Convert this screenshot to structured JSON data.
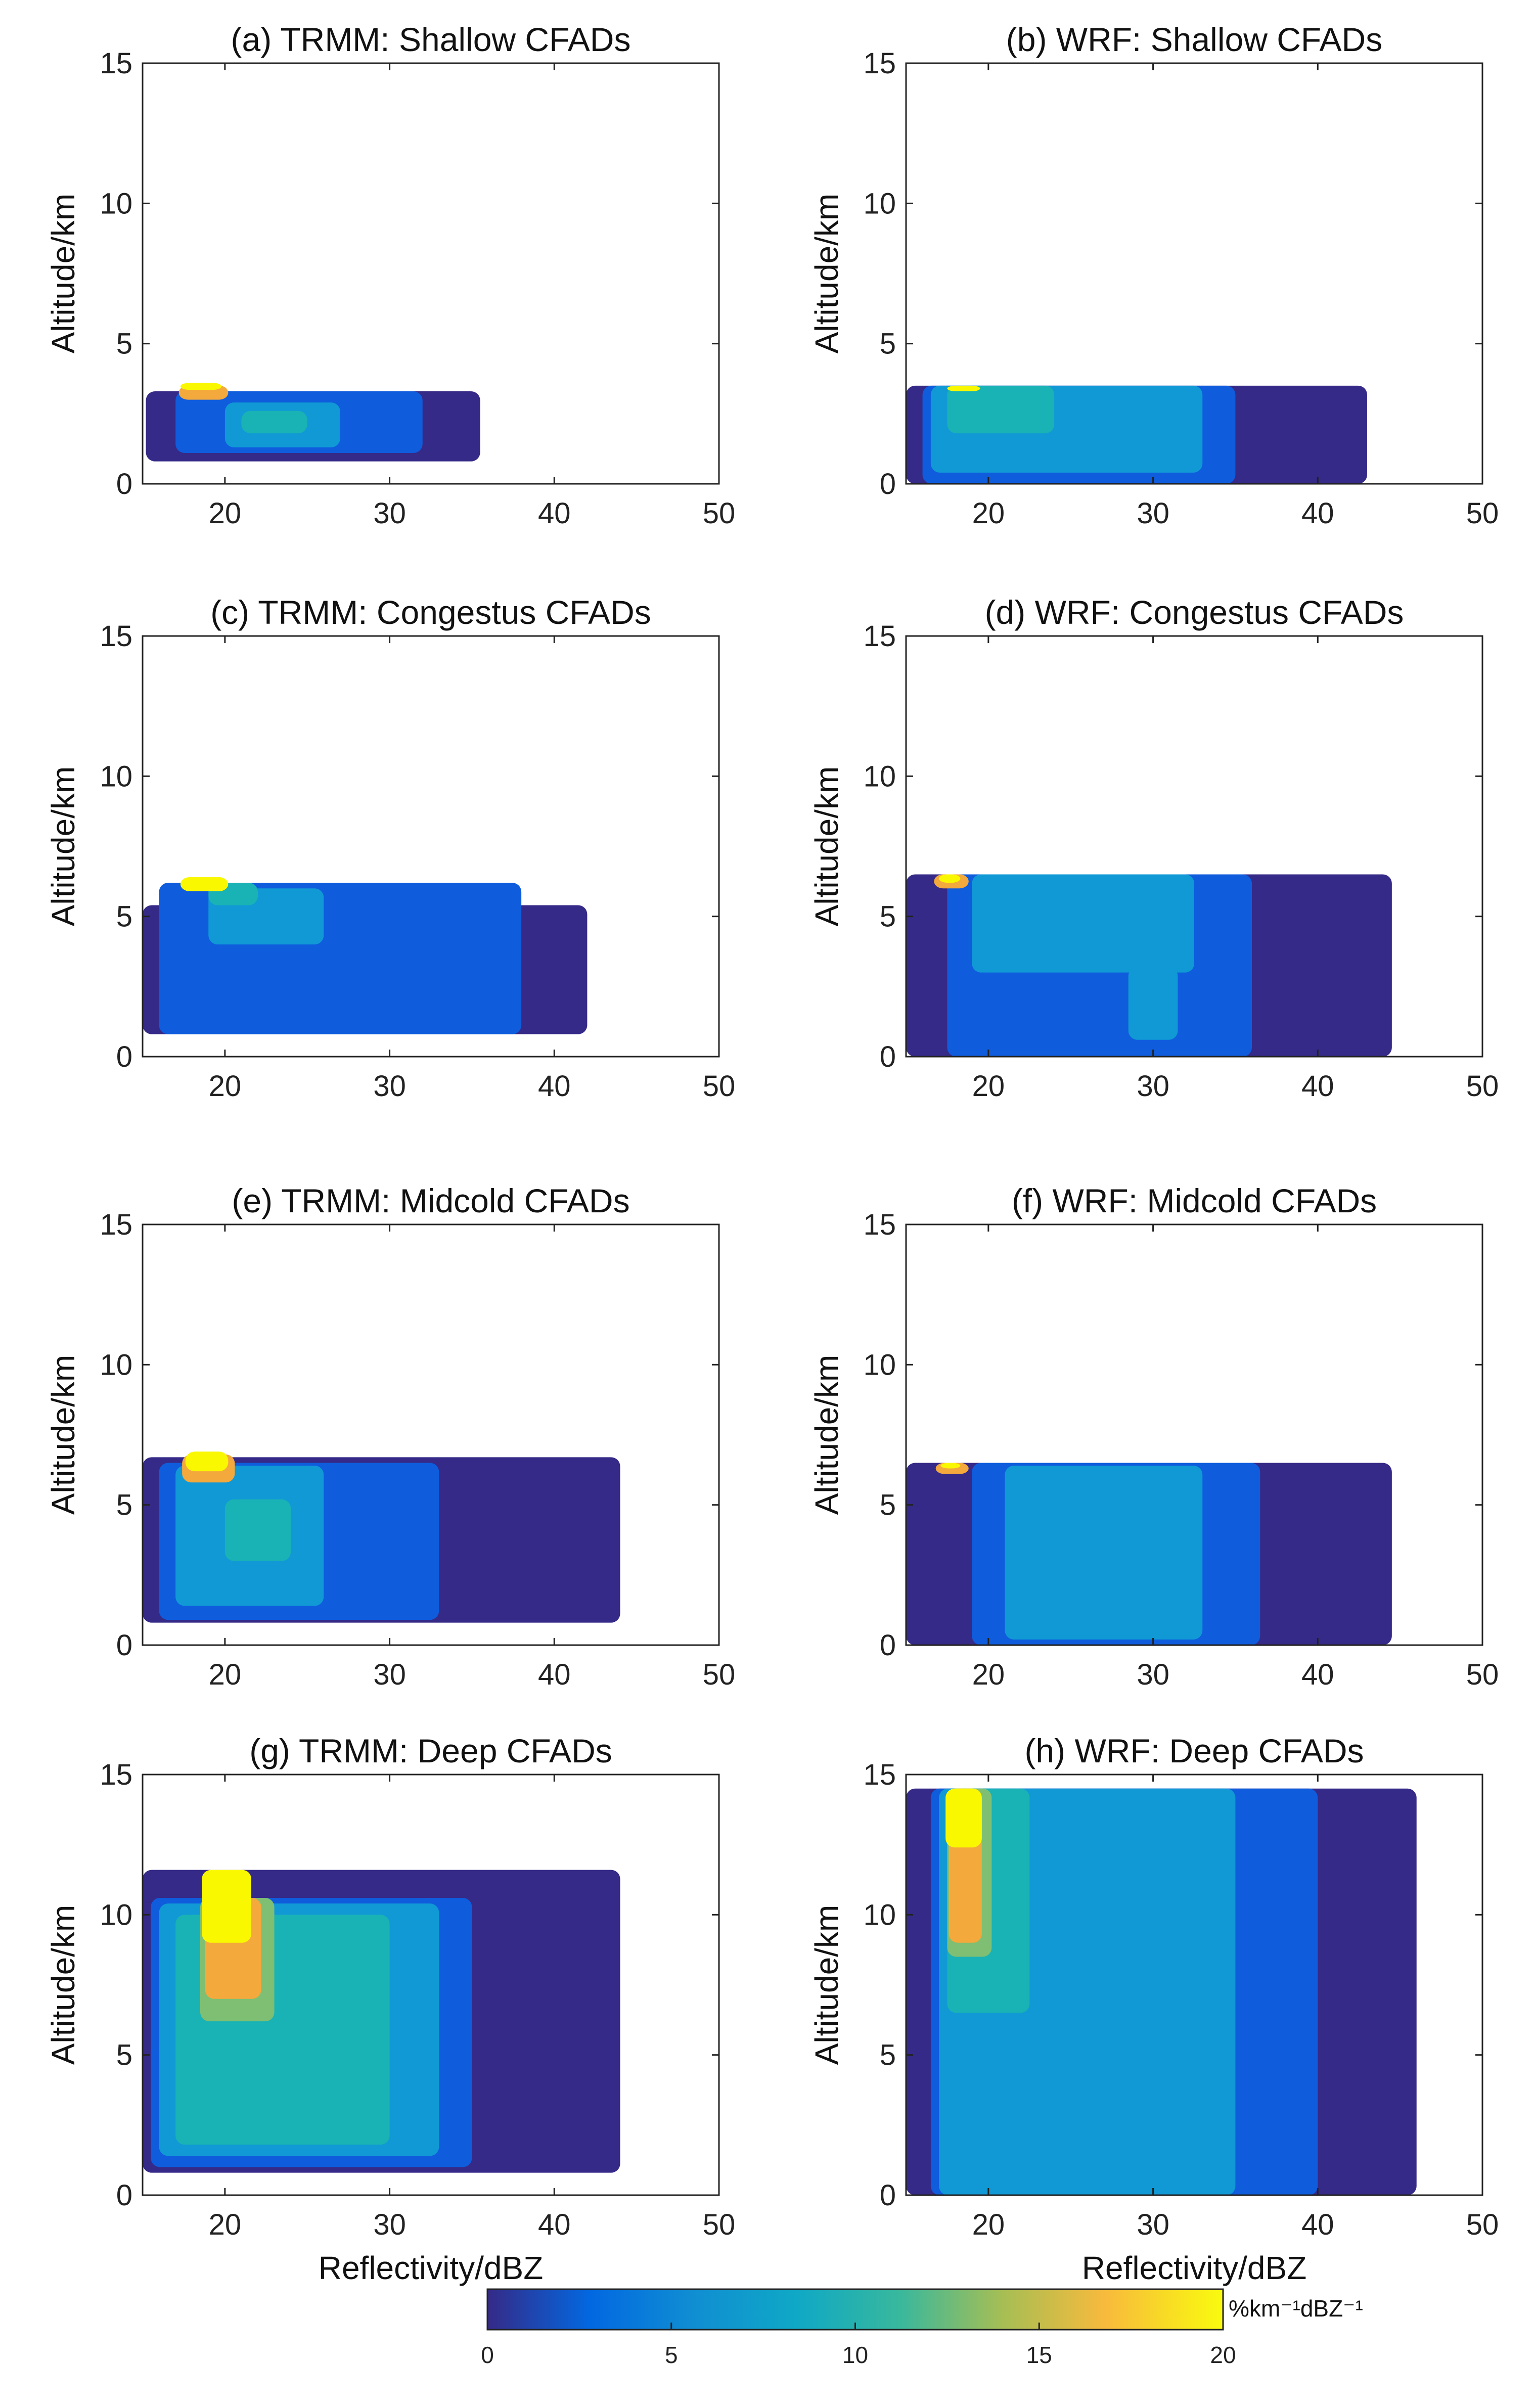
{
  "chart_data": [
    {
      "id": "a",
      "type": "contourf",
      "title": "(a) TRMM: Shallow CFADs",
      "xlim": [
        15,
        50
      ],
      "ylim": [
        0,
        15
      ],
      "xticks": [
        20,
        30,
        40,
        50
      ],
      "yticks": [
        0,
        5,
        10,
        15
      ],
      "ylabel": "Altitude/km",
      "xlabel": "",
      "blobs": [
        {
          "l": 1,
          "x": [
            15.2,
            35.5
          ],
          "y": [
            0.8,
            3.3
          ]
        },
        {
          "l": 2,
          "x": [
            17,
            32
          ],
          "y": [
            1.1,
            3.3
          ]
        },
        {
          "l": 3,
          "x": [
            20,
            27
          ],
          "y": [
            1.3,
            2.9
          ]
        },
        {
          "l": 4,
          "x": [
            21,
            25
          ],
          "y": [
            1.8,
            2.6
          ]
        },
        {
          "l": 6,
          "x": [
            17.2,
            20.2
          ],
          "y": [
            3.0,
            3.5
          ]
        },
        {
          "l": 7,
          "x": [
            17.3,
            19.8
          ],
          "y": [
            3.35,
            3.6
          ]
        }
      ]
    },
    {
      "id": "b",
      "type": "contourf",
      "title": "(b) WRF: Shallow CFADs",
      "xlim": [
        15,
        50
      ],
      "ylim": [
        0,
        15
      ],
      "xticks": [
        20,
        30,
        40,
        50
      ],
      "yticks": [
        0,
        5,
        10,
        15
      ],
      "ylabel": "Altitude/km",
      "xlabel": "",
      "blobs": [
        {
          "l": 1,
          "x": [
            15,
            43
          ],
          "y": [
            0,
            3.5
          ]
        },
        {
          "l": 2,
          "x": [
            16,
            35
          ],
          "y": [
            0,
            3.5
          ]
        },
        {
          "l": 3,
          "x": [
            16.5,
            33
          ],
          "y": [
            0.4,
            3.5
          ]
        },
        {
          "l": 4,
          "x": [
            17.5,
            24
          ],
          "y": [
            1.8,
            3.5
          ]
        },
        {
          "l": 7,
          "x": [
            17.5,
            19.5
          ],
          "y": [
            3.3,
            3.5
          ]
        }
      ]
    },
    {
      "id": "c",
      "type": "contourf",
      "title": "(c) TRMM: Congestus CFADs",
      "xlim": [
        15,
        50
      ],
      "ylim": [
        0,
        15
      ],
      "xticks": [
        20,
        30,
        40,
        50
      ],
      "yticks": [
        0,
        5,
        10,
        15
      ],
      "ylabel": "Altitude/km",
      "xlabel": "",
      "blobs": [
        {
          "l": 1,
          "x": [
            15,
            42
          ],
          "y": [
            0.8,
            5.4
          ]
        },
        {
          "l": 2,
          "x": [
            16,
            38
          ],
          "y": [
            0.8,
            6.2
          ]
        },
        {
          "l": 3,
          "x": [
            19,
            26
          ],
          "y": [
            4.0,
            6.0
          ]
        },
        {
          "l": 4,
          "x": [
            19,
            22
          ],
          "y": [
            5.4,
            6.2
          ]
        },
        {
          "l": 7,
          "x": [
            17.3,
            20.2
          ],
          "y": [
            5.9,
            6.4
          ]
        }
      ]
    },
    {
      "id": "d",
      "type": "contourf",
      "title": "(d) WRF: Congestus CFADs",
      "xlim": [
        15,
        50
      ],
      "ylim": [
        0,
        15
      ],
      "xticks": [
        20,
        30,
        40,
        50
      ],
      "yticks": [
        0,
        5,
        10,
        15
      ],
      "ylabel": "Altitude/km",
      "xlabel": "",
      "blobs": [
        {
          "l": 1,
          "x": [
            15,
            44.5
          ],
          "y": [
            0,
            6.5
          ]
        },
        {
          "l": 2,
          "x": [
            17.5,
            36
          ],
          "y": [
            0,
            6.5
          ]
        },
        {
          "l": 3,
          "x": [
            19,
            32.5
          ],
          "y": [
            3.0,
            6.5
          ]
        },
        {
          "l": 3,
          "x": [
            28.5,
            31.5
          ],
          "y": [
            0.6,
            3.2
          ]
        },
        {
          "l": 6,
          "x": [
            16.7,
            18.8
          ],
          "y": [
            6.0,
            6.5
          ]
        },
        {
          "l": 7,
          "x": [
            17.0,
            18.3
          ],
          "y": [
            6.2,
            6.5
          ]
        }
      ]
    },
    {
      "id": "e",
      "type": "contourf",
      "title": "(e) TRMM: Midcold CFADs",
      "xlim": [
        15,
        50
      ],
      "ylim": [
        0,
        15
      ],
      "xticks": [
        20,
        30,
        40,
        50
      ],
      "yticks": [
        0,
        5,
        10,
        15
      ],
      "ylabel": "Altitude/km",
      "xlabel": "",
      "blobs": [
        {
          "l": 1,
          "x": [
            15,
            44
          ],
          "y": [
            0.8,
            6.7
          ]
        },
        {
          "l": 2,
          "x": [
            16,
            33
          ],
          "y": [
            0.9,
            6.5
          ]
        },
        {
          "l": 3,
          "x": [
            17,
            26
          ],
          "y": [
            1.4,
            6.4
          ]
        },
        {
          "l": 4,
          "x": [
            20,
            24
          ],
          "y": [
            3.0,
            5.2
          ]
        },
        {
          "l": 6,
          "x": [
            17.4,
            20.6
          ],
          "y": [
            5.8,
            6.8
          ]
        },
        {
          "l": 7,
          "x": [
            17.6,
            20.2
          ],
          "y": [
            6.2,
            6.9
          ]
        }
      ]
    },
    {
      "id": "f",
      "type": "contourf",
      "title": "(f) WRF: Midcold CFADs",
      "xlim": [
        15,
        50
      ],
      "ylim": [
        0,
        15
      ],
      "xticks": [
        20,
        30,
        40,
        50
      ],
      "yticks": [
        0,
        5,
        10,
        15
      ],
      "ylabel": "Altitude/km",
      "xlabel": "",
      "blobs": [
        {
          "l": 1,
          "x": [
            15,
            44.5
          ],
          "y": [
            0,
            6.5
          ]
        },
        {
          "l": 2,
          "x": [
            19,
            36.5
          ],
          "y": [
            0,
            6.5
          ]
        },
        {
          "l": 3,
          "x": [
            21,
            33
          ],
          "y": [
            0.2,
            6.4
          ]
        },
        {
          "l": 6,
          "x": [
            16.8,
            18.8
          ],
          "y": [
            6.1,
            6.5
          ]
        },
        {
          "l": 7,
          "x": [
            17.1,
            18.3
          ],
          "y": [
            6.3,
            6.5
          ]
        }
      ]
    },
    {
      "id": "g",
      "type": "contourf",
      "title": "(g) TRMM: Deep CFADs",
      "xlim": [
        15,
        50
      ],
      "ylim": [
        0,
        15
      ],
      "xticks": [
        20,
        30,
        40,
        50
      ],
      "yticks": [
        0,
        5,
        10,
        15
      ],
      "ylabel": "Altitude/km",
      "xlabel": "Reflectivity/dBZ",
      "blobs": [
        {
          "l": 1,
          "x": [
            15,
            44
          ],
          "y": [
            0.8,
            11.6
          ]
        },
        {
          "l": 2,
          "x": [
            15.5,
            35
          ],
          "y": [
            1.0,
            10.6
          ]
        },
        {
          "l": 3,
          "x": [
            16,
            33
          ],
          "y": [
            1.4,
            10.4
          ]
        },
        {
          "l": 4,
          "x": [
            17,
            30
          ],
          "y": [
            1.8,
            10.0
          ]
        },
        {
          "l": 5,
          "x": [
            18.5,
            23
          ],
          "y": [
            6.2,
            10.6
          ]
        },
        {
          "l": 6,
          "x": [
            18.8,
            22.2
          ],
          "y": [
            7.0,
            10.6
          ]
        },
        {
          "l": 7,
          "x": [
            18.6,
            21.6
          ],
          "y": [
            9.0,
            11.6
          ]
        }
      ]
    },
    {
      "id": "h",
      "type": "contourf",
      "title": "(h) WRF: Deep CFADs",
      "xlim": [
        15,
        50
      ],
      "ylim": [
        0,
        15
      ],
      "xticks": [
        20,
        30,
        40,
        50
      ],
      "yticks": [
        0,
        5,
        10,
        15
      ],
      "ylabel": "Altitude/km",
      "xlabel": "Reflectivity/dBZ",
      "blobs": [
        {
          "l": 1,
          "x": [
            15,
            46
          ],
          "y": [
            0,
            14.5
          ]
        },
        {
          "l": 2,
          "x": [
            16.5,
            40
          ],
          "y": [
            0,
            14.5
          ]
        },
        {
          "l": 3,
          "x": [
            17,
            35
          ],
          "y": [
            0,
            14.5
          ]
        },
        {
          "l": 4,
          "x": [
            17.5,
            22.5
          ],
          "y": [
            6.5,
            14.5
          ]
        },
        {
          "l": 5,
          "x": [
            17.5,
            20.2
          ],
          "y": [
            8.5,
            14.5
          ]
        },
        {
          "l": 6,
          "x": [
            17.6,
            19.6
          ],
          "y": [
            9.0,
            14.5
          ]
        },
        {
          "l": 7,
          "x": [
            17.4,
            19.6
          ],
          "y": [
            12.4,
            14.5
          ]
        }
      ]
    }
  ],
  "colorbar": {
    "label": "%km⁻¹dBZ⁻¹",
    "ticks": [
      0,
      5,
      10,
      15,
      20
    ],
    "range": [
      0,
      20
    ],
    "colormap": "parula",
    "level_colors": [
      "#ffffff",
      "#352a87",
      "#0f5cdd",
      "#1199d5",
      "#19b2b5",
      "#7ebf73",
      "#f4a93c",
      "#f9f800"
    ]
  }
}
